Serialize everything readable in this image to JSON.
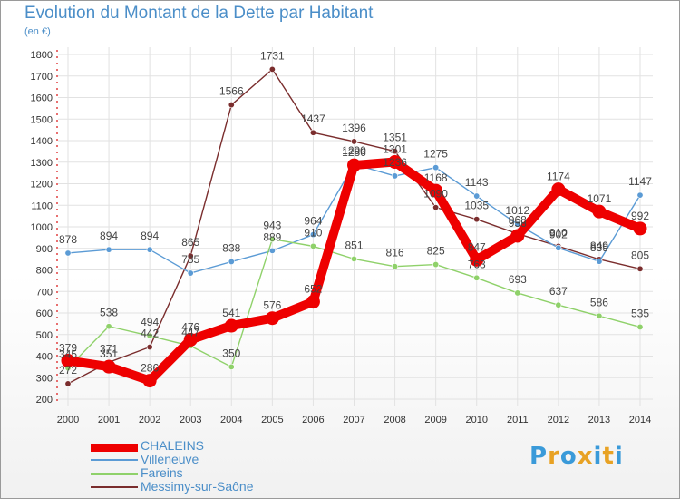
{
  "header": {
    "title": "Evolution du Montant de la Dette par Habitant",
    "subtitle": "(en €)"
  },
  "logo": {
    "text": "Proxiti",
    "letters": [
      "P",
      "r",
      "o",
      "x",
      "i",
      "t",
      "i"
    ],
    "colors": [
      "#3a9ad9",
      "#e8a224",
      "#3a9ad9",
      "#e8a224",
      "#3a9ad9",
      "#e8a224",
      "#3a9ad9"
    ]
  },
  "chart_data": {
    "type": "line",
    "title": "Evolution du Montant de la Dette par Habitant",
    "subtitle": "(en €)",
    "x": [
      2000,
      2001,
      2002,
      2003,
      2004,
      2005,
      2006,
      2007,
      2008,
      2009,
      2010,
      2011,
      2012,
      2013,
      2014
    ],
    "ylim": [
      200,
      1800
    ],
    "yticks": [
      200,
      300,
      400,
      500,
      600,
      700,
      800,
      900,
      1000,
      1100,
      1200,
      1300,
      1400,
      1500,
      1600,
      1700,
      1800
    ],
    "grid": true,
    "legend_position": "bottom-left",
    "series": [
      {
        "name": "CHALEINS",
        "color": "#ee0000",
        "emphasis": "thick",
        "values": [
          379,
          351,
          286,
          476,
          541,
          576,
          652,
          1286,
          1301,
          1168,
          847,
          958,
          1174,
          1071,
          992
        ],
        "labels": [
          "379",
          "351",
          "286",
          "476",
          "541",
          "576",
          "652",
          "1286",
          "1301",
          "1168",
          "847",
          "958",
          "1174",
          "1071",
          "992"
        ]
      },
      {
        "name": "Villeneuve",
        "color": "#5b9bd5",
        "values": [
          878,
          894,
          894,
          785,
          838,
          889,
          964,
          1290,
          1236,
          1275,
          1143,
          1012,
          902,
          839,
          1147
        ],
        "labels": [
          "878",
          "894",
          "894",
          "785",
          "838",
          "889",
          "964",
          "1290",
          "1236",
          "1275",
          "1143",
          "1012",
          "902",
          "839",
          "1147"
        ]
      },
      {
        "name": "Fareins",
        "color": "#8fd16a",
        "values": [
          345,
          538,
          494,
          447,
          350,
          943,
          910,
          851,
          816,
          825,
          763,
          693,
          637,
          586,
          535
        ],
        "labels": [
          "345",
          "538",
          "494",
          "447",
          "350",
          "943",
          "910",
          "851",
          "816",
          "825",
          "763",
          "693",
          "637",
          "586",
          "535"
        ]
      },
      {
        "name": "Messimy-sur-Saône",
        "color": "#7a2d2d",
        "values": [
          272,
          371,
          442,
          865,
          1566,
          1731,
          1437,
          1396,
          1351,
          1090,
          1035,
          968,
          910,
          849,
          805
        ],
        "labels": [
          "272",
          "371",
          "442",
          "865",
          "1566",
          "1731",
          "1437",
          "1396",
          "1351",
          "1090",
          "1035",
          "968",
          "910",
          "849",
          "805"
        ]
      }
    ]
  }
}
